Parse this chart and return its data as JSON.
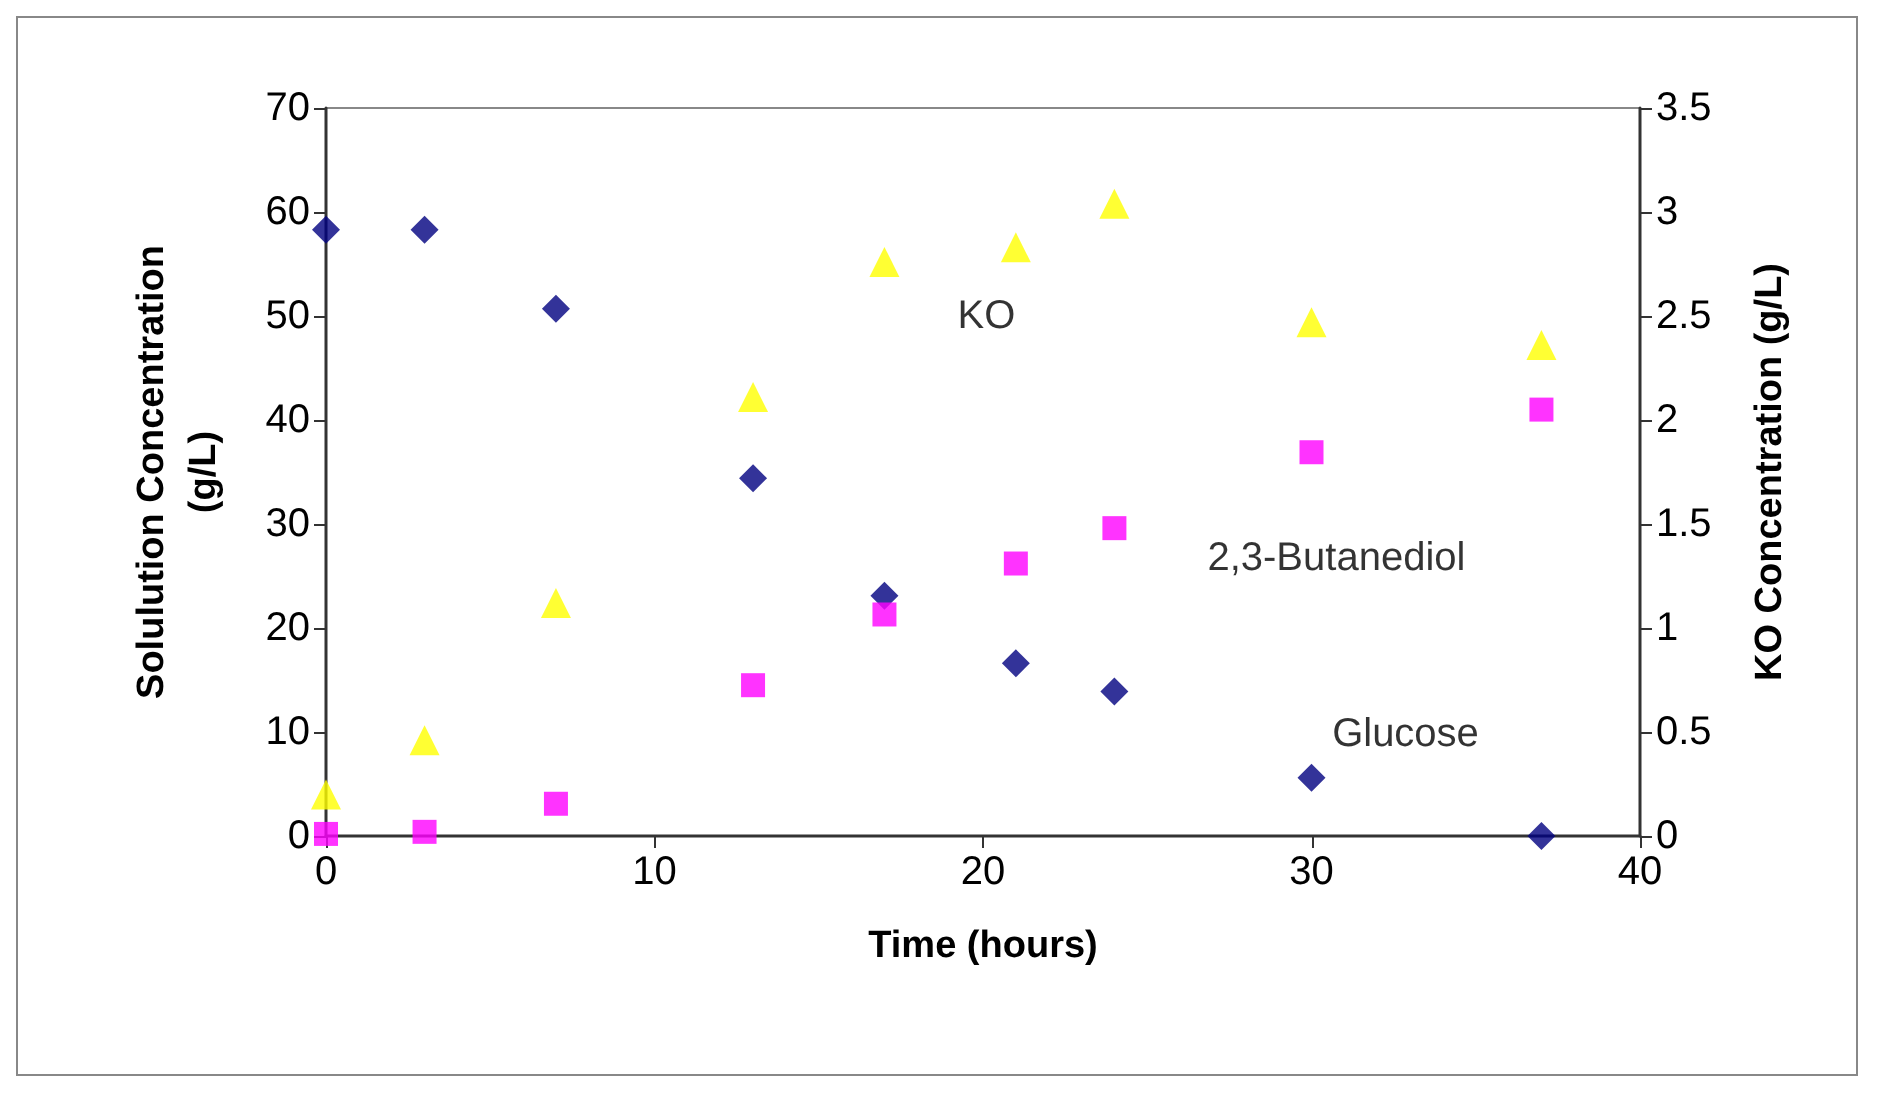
{
  "chart_data": {
    "type": "scatter",
    "xlabel": "Time (hours)",
    "ylabel": "Solulution Concentration\n(g/L)",
    "y2label": "KO Concentration (g/L)",
    "xlim": [
      0,
      40
    ],
    "xticks": [
      0,
      10,
      20,
      30,
      40
    ],
    "ylim": [
      0,
      70
    ],
    "yticks": [
      0,
      10,
      20,
      30,
      40,
      50,
      60,
      70
    ],
    "y2lim": [
      0,
      3.5
    ],
    "y2ticks": [
      0,
      0.5,
      1,
      1.5,
      2,
      2.5,
      3,
      3.5
    ],
    "grid": false,
    "legend": false,
    "x": [
      0,
      3,
      7,
      13,
      17,
      21,
      24,
      30,
      37
    ],
    "series": [
      {
        "name": "Glucose",
        "color": "#000080",
        "marker": "diamond",
        "values": [
          58.3,
          58.3,
          50.7,
          34.4,
          23.1,
          16.6,
          13.9,
          5.6,
          0
        ]
      },
      {
        "name": "2,3-Butanediol",
        "color": "#ff00ff",
        "marker": "square",
        "values": [
          0.2,
          0.4,
          3.1,
          14.5,
          21.3,
          26.2,
          29.6,
          36.9,
          41.0
        ]
      },
      {
        "name": "KO",
        "color": "#ffff00",
        "marker": "triangle",
        "axis": "y2",
        "values": [
          0.2,
          0.46,
          1.12,
          2.11,
          2.76,
          2.83,
          3.04,
          2.47,
          2.36
        ]
      }
    ]
  }
}
